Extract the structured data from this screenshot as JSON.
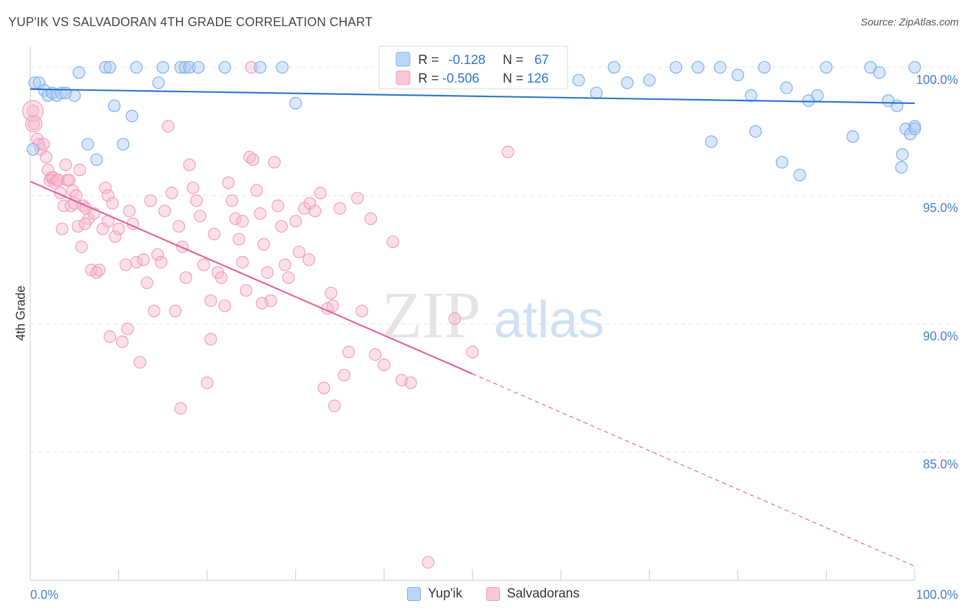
{
  "title": "YUP'IK VS SALVADORAN 4TH GRADE CORRELATION CHART",
  "source": "Source: ZipAtlas.com",
  "watermark": {
    "zip": "ZIP",
    "atlas": "atlas"
  },
  "colors": {
    "blue": "#7aaee8",
    "blue_line": "#2b73cc",
    "pink": "#f29bbb",
    "pink_line": "#e0609a",
    "tick_text": "#4a7cc7",
    "grid": "#e3e3e3"
  },
  "legend": {
    "rows": [
      {
        "r_label": "R =",
        "r_value": "-0.128",
        "n_label": "N =",
        "n_value": "67"
      },
      {
        "r_label": "R =",
        "r_value": "-0.506",
        "n_label": "N =",
        "n_value": "126"
      }
    ]
  },
  "bottom_legend": [
    "Yup'ik",
    "Salvadorans"
  ],
  "chart_data": {
    "type": "scatter",
    "title": "YUP'IK VS SALVADORAN 4TH GRADE CORRELATION CHART",
    "xlabel": "",
    "ylabel": "4th Grade",
    "xlim": [
      0,
      100
    ],
    "ylim": [
      80.0,
      100.8
    ],
    "x_tick_labels": [
      "0.0%",
      "100.0%"
    ],
    "y_ticks": [
      85,
      90,
      95,
      100
    ],
    "y_tick_labels": [
      "85.0%",
      "90.0%",
      "95.0%",
      "100.0%"
    ],
    "grid": true,
    "legend_position": "top-center",
    "series": [
      {
        "name": "Yup'ik",
        "color": "#7aaee8",
        "r": -0.128,
        "n": 67,
        "trend": {
          "x": [
            0,
            100
          ],
          "y": [
            99.15,
            98.6
          ],
          "dashed_from": null
        },
        "points": [
          [
            0.3,
            96.8
          ],
          [
            0.5,
            99.4
          ],
          [
            1.0,
            99.4
          ],
          [
            1.6,
            99.1
          ],
          [
            2.0,
            98.9
          ],
          [
            2.5,
            99.0
          ],
          [
            3.0,
            98.9
          ],
          [
            3.5,
            99.0
          ],
          [
            4.0,
            99.0
          ],
          [
            5.0,
            98.9
          ],
          [
            5.5,
            99.8
          ],
          [
            6.5,
            97.0
          ],
          [
            7.5,
            96.4
          ],
          [
            8.5,
            100.0
          ],
          [
            9.0,
            100.0
          ],
          [
            9.5,
            98.5
          ],
          [
            10.5,
            97.0
          ],
          [
            11.5,
            98.1
          ],
          [
            12.0,
            100.0
          ],
          [
            14.5,
            99.4
          ],
          [
            15.0,
            100.0
          ],
          [
            17.0,
            100.0
          ],
          [
            17.5,
            100.0
          ],
          [
            18.0,
            100.0
          ],
          [
            19.0,
            100.0
          ],
          [
            22.0,
            100.0
          ],
          [
            26.0,
            100.0
          ],
          [
            28.5,
            100.0
          ],
          [
            30.0,
            98.6
          ],
          [
            41.0,
            100.0
          ],
          [
            42.5,
            100.0
          ],
          [
            44.0,
            100.0
          ],
          [
            48.0,
            100.0
          ],
          [
            55.0,
            99.7
          ],
          [
            58.0,
            100.0
          ],
          [
            60.0,
            99.6
          ],
          [
            62.0,
            99.5
          ],
          [
            64.0,
            99.0
          ],
          [
            66.0,
            100.0
          ],
          [
            67.5,
            99.4
          ],
          [
            70.0,
            99.5
          ],
          [
            73.0,
            100.0
          ],
          [
            75.5,
            100.0
          ],
          [
            77.0,
            97.1
          ],
          [
            78.0,
            100.0
          ],
          [
            80.0,
            99.7
          ],
          [
            81.5,
            98.9
          ],
          [
            82.0,
            97.5
          ],
          [
            83.0,
            100.0
          ],
          [
            85.0,
            96.3
          ],
          [
            85.5,
            99.2
          ],
          [
            87.0,
            95.8
          ],
          [
            88.0,
            98.7
          ],
          [
            89.0,
            98.9
          ],
          [
            90.0,
            100.0
          ],
          [
            93.0,
            97.3
          ],
          [
            95.0,
            100.0
          ],
          [
            96.0,
            99.8
          ],
          [
            97.0,
            98.7
          ],
          [
            98.0,
            98.5
          ],
          [
            98.5,
            96.1
          ],
          [
            98.6,
            96.6
          ],
          [
            99.0,
            97.6
          ],
          [
            99.5,
            97.4
          ],
          [
            100.0,
            97.7
          ],
          [
            100.0,
            97.6
          ],
          [
            100.0,
            100.0
          ]
        ]
      },
      {
        "name": "Salvadorans",
        "color": "#f29bbb",
        "r": -0.506,
        "n": 126,
        "trend": {
          "x": [
            0,
            100
          ],
          "y": [
            95.55,
            80.55
          ],
          "dashed_from": 50
        },
        "points": [
          [
            0.3,
            98.3
          ],
          [
            0.4,
            97.8
          ],
          [
            0.8,
            97.2
          ],
          [
            1.0,
            97.0
          ],
          [
            1.2,
            96.8
          ],
          [
            1.5,
            97.0
          ],
          [
            1.8,
            96.5
          ],
          [
            2.0,
            96.0
          ],
          [
            2.2,
            95.6
          ],
          [
            2.4,
            95.7
          ],
          [
            2.6,
            95.7
          ],
          [
            2.8,
            95.5
          ],
          [
            3.0,
            95.6
          ],
          [
            3.2,
            95.6
          ],
          [
            3.4,
            95.1
          ],
          [
            3.6,
            93.7
          ],
          [
            3.8,
            94.6
          ],
          [
            4.0,
            96.2
          ],
          [
            4.2,
            95.6
          ],
          [
            4.4,
            95.6
          ],
          [
            4.6,
            94.6
          ],
          [
            4.8,
            95.2
          ],
          [
            5.0,
            94.7
          ],
          [
            5.2,
            95.0
          ],
          [
            5.4,
            93.8
          ],
          [
            5.6,
            96.0
          ],
          [
            5.8,
            93.0
          ],
          [
            6.0,
            94.6
          ],
          [
            6.3,
            94.5
          ],
          [
            6.6,
            94.1
          ],
          [
            6.9,
            92.1
          ],
          [
            7.2,
            94.3
          ],
          [
            7.5,
            92.0
          ],
          [
            7.8,
            92.1
          ],
          [
            8.2,
            93.7
          ],
          [
            8.5,
            95.3
          ],
          [
            8.8,
            95.0
          ],
          [
            9.0,
            89.5
          ],
          [
            9.3,
            94.7
          ],
          [
            9.6,
            93.4
          ],
          [
            10.0,
            93.7
          ],
          [
            10.4,
            89.3
          ],
          [
            10.8,
            92.3
          ],
          [
            11.2,
            94.4
          ],
          [
            11.6,
            93.9
          ],
          [
            12.0,
            92.4
          ],
          [
            12.4,
            88.5
          ],
          [
            12.8,
            92.5
          ],
          [
            13.2,
            91.6
          ],
          [
            13.6,
            94.8
          ],
          [
            14.0,
            90.5
          ],
          [
            14.4,
            92.7
          ],
          [
            14.8,
            92.4
          ],
          [
            15.2,
            94.4
          ],
          [
            15.6,
            97.7
          ],
          [
            16.0,
            95.1
          ],
          [
            16.4,
            90.5
          ],
          [
            16.8,
            93.8
          ],
          [
            17.2,
            93.0
          ],
          [
            17.6,
            91.8
          ],
          [
            18.0,
            96.2
          ],
          [
            18.4,
            95.3
          ],
          [
            18.8,
            94.8
          ],
          [
            19.2,
            94.2
          ],
          [
            19.6,
            92.3
          ],
          [
            20.0,
            87.7
          ],
          [
            20.4,
            90.9
          ],
          [
            20.8,
            93.5
          ],
          [
            21.2,
            92.0
          ],
          [
            21.6,
            91.8
          ],
          [
            22.0,
            90.7
          ],
          [
            22.4,
            95.5
          ],
          [
            22.8,
            94.8
          ],
          [
            23.2,
            94.1
          ],
          [
            23.6,
            93.3
          ],
          [
            24.0,
            92.4
          ],
          [
            24.4,
            91.3
          ],
          [
            24.8,
            96.5
          ],
          [
            25.2,
            96.4
          ],
          [
            25.6,
            95.2
          ],
          [
            26.0,
            94.3
          ],
          [
            26.4,
            93.1
          ],
          [
            26.8,
            92.0
          ],
          [
            27.2,
            90.9
          ],
          [
            27.6,
            96.3
          ],
          [
            28.0,
            94.6
          ],
          [
            28.4,
            93.8
          ],
          [
            28.8,
            92.3
          ],
          [
            29.2,
            91.8
          ],
          [
            30.0,
            94.0
          ],
          [
            30.4,
            92.8
          ],
          [
            31.0,
            94.5
          ],
          [
            31.6,
            94.7
          ],
          [
            32.2,
            94.4
          ],
          [
            32.8,
            95.1
          ],
          [
            33.2,
            87.5
          ],
          [
            33.6,
            90.6
          ],
          [
            34.0,
            91.2
          ],
          [
            34.4,
            86.8
          ],
          [
            35.0,
            94.5
          ],
          [
            35.5,
            88.0
          ],
          [
            36.0,
            88.9
          ],
          [
            37.0,
            94.9
          ],
          [
            37.5,
            90.5
          ],
          [
            38.5,
            94.1
          ],
          [
            39.0,
            88.8
          ],
          [
            40.0,
            88.4
          ],
          [
            41.0,
            93.2
          ],
          [
            42.0,
            87.8
          ],
          [
            43.0,
            87.7
          ],
          [
            45.0,
            80.7
          ],
          [
            48.0,
            90.2
          ],
          [
            50.0,
            88.9
          ],
          [
            54.0,
            96.7
          ],
          [
            25.0,
            100.0
          ],
          [
            17.0,
            86.7
          ],
          [
            20.4,
            89.4
          ],
          [
            11.0,
            89.8
          ],
          [
            26.2,
            90.8
          ],
          [
            34.2,
            90.7
          ],
          [
            24.0,
            94.0
          ],
          [
            31.5,
            92.5
          ],
          [
            6.2,
            93.9
          ],
          [
            8.8,
            94.0
          ]
        ]
      }
    ]
  }
}
